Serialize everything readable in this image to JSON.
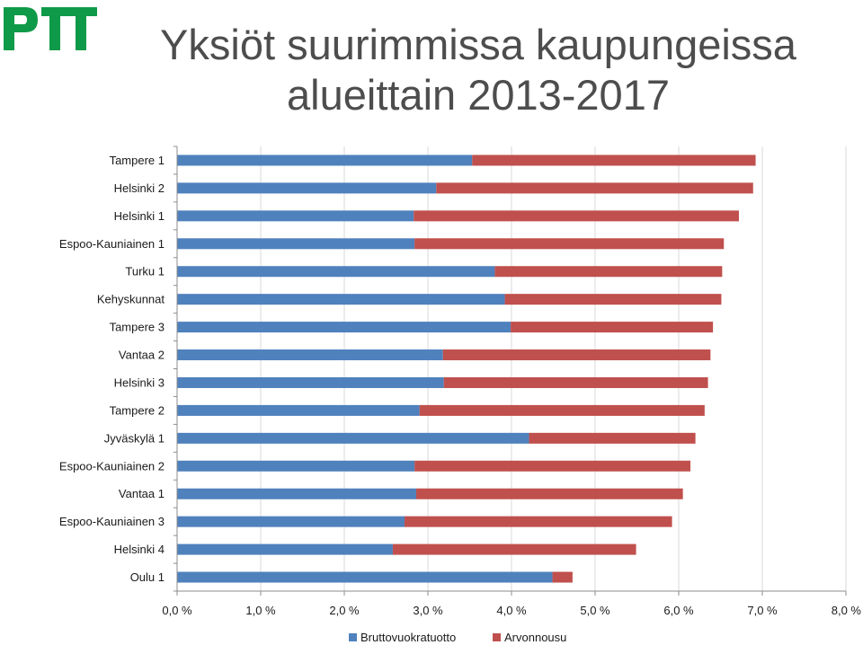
{
  "colors": {
    "brand": "#0f9a49",
    "title": "#4d4d4d",
    "series1": "#4f81bd",
    "series2": "#c0504d"
  },
  "chart_data": {
    "type": "bar",
    "orientation": "horizontal",
    "stacked": true,
    "title": "Yksiöt suurimmissa kaupungeissa alueittain 2013-2017",
    "title_lines": [
      "Yksiöt suurimmissa kaupungeissa",
      "alueittain 2013-2017"
    ],
    "xlabel": "",
    "ylabel": "",
    "categories": [
      "Tampere 1",
      "Helsinki 2",
      "Helsinki 1",
      "Espoo-Kauniainen 1",
      "Turku 1",
      "Kehyskunnat",
      "Tampere 3",
      "Vantaa 2",
      "Helsinki 3",
      "Tampere 2",
      "Jyväskylä 1",
      "Espoo-Kauniainen 2",
      "Vantaa 1",
      "Espoo-Kauniainen 3",
      "Helsinki 4",
      "Oulu 1"
    ],
    "series": [
      {
        "name": "Bruttovuokratuotto",
        "color": "#4f81bd",
        "values": [
          3.53,
          3.1,
          2.83,
          2.84,
          3.8,
          3.92,
          3.99,
          3.18,
          3.19,
          2.9,
          4.21,
          2.84,
          2.86,
          2.72,
          2.58,
          4.49
        ]
      },
      {
        "name": "Arvonnousu",
        "color": "#c0504d",
        "values": [
          3.39,
          3.79,
          3.89,
          3.7,
          2.72,
          2.59,
          2.42,
          3.2,
          3.16,
          3.41,
          1.99,
          3.3,
          3.19,
          3.2,
          2.91,
          0.24
        ]
      }
    ],
    "xlim": [
      0,
      8
    ],
    "xticks": [
      "0,0 %",
      "1,0 %",
      "2,0 %",
      "3,0 %",
      "4,0 %",
      "5,0 %",
      "6,0 %",
      "7,0 %",
      "8,0 %"
    ],
    "grid": "vertical",
    "legend": "bottom"
  }
}
